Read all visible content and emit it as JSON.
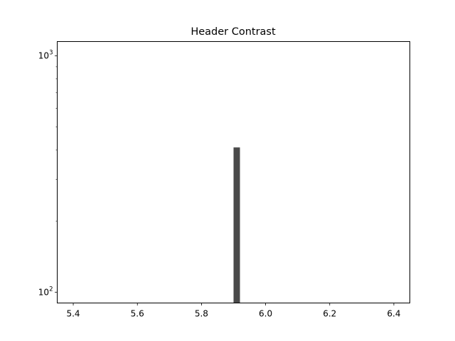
{
  "chart_data": {
    "type": "bar",
    "title": "Header Contrast",
    "xlabel": "",
    "ylabel": "",
    "y_scale": "log",
    "xlim": [
      5.35,
      6.45
    ],
    "ylim": [
      90,
      1150
    ],
    "x_ticks": [
      5.4,
      5.6,
      5.8,
      6.0,
      6.2,
      6.4
    ],
    "x_tick_labels": [
      "5.4",
      "5.6",
      "5.8",
      "6.0",
      "6.2",
      "6.4"
    ],
    "y_ticks": [
      100,
      1000
    ],
    "y_tick_bases": [
      "10",
      "10"
    ],
    "y_tick_exponents": [
      "2",
      "3"
    ],
    "bars": [
      {
        "x_start": 5.9,
        "x_end": 5.92,
        "value": 410
      }
    ],
    "bar_color": "#4a4a4a",
    "grid": false,
    "legend": "none"
  }
}
